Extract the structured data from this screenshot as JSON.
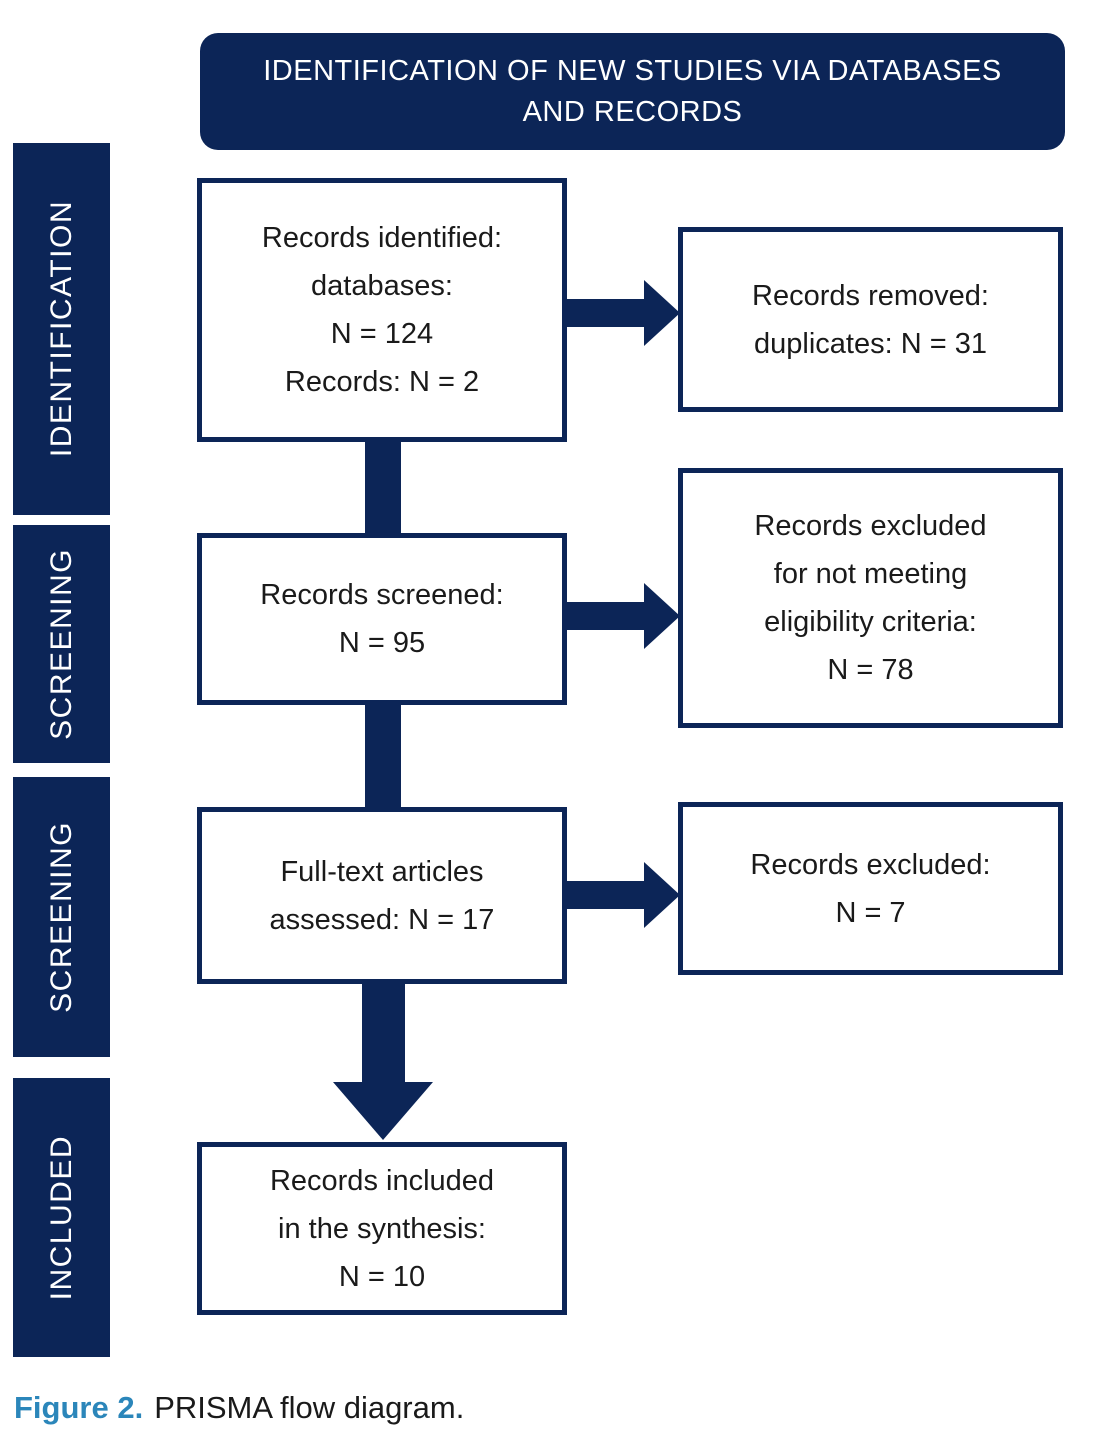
{
  "colors": {
    "navy": "#0c2557",
    "caption_blue": "#2b86ba",
    "box_text": "#1a1a1a"
  },
  "header": {
    "title": "IDENTIFICATION OF NEW STUDIES VIA DATABASES AND RECORDS"
  },
  "sidebar": {
    "stages": [
      {
        "label": "IDENTIFICATION"
      },
      {
        "label": "SCREENING"
      },
      {
        "label": "SCREENING"
      },
      {
        "label": "INCLUDED"
      }
    ]
  },
  "flow": {
    "identified": {
      "lines": [
        "Records identified:",
        "databases:",
        "N = 124",
        "Records: N = 2"
      ]
    },
    "removed": {
      "lines": [
        "Records removed:",
        "duplicates: N = 31"
      ]
    },
    "screened": {
      "lines": [
        "Records screened:",
        "N = 95"
      ]
    },
    "excluded_eligibility": {
      "lines": [
        "Records excluded",
        "for not meeting",
        "eligibility criteria:",
        "N = 78"
      ]
    },
    "fulltext": {
      "lines": [
        "Full-text articles",
        "assessed: N = 17"
      ]
    },
    "excluded": {
      "lines": [
        "Records excluded:",
        "N = 7"
      ]
    },
    "included": {
      "lines": [
        "Records included",
        "in the synthesis:",
        "N = 10"
      ]
    }
  },
  "caption": {
    "label": "Figure 2.",
    "text": "PRISMA flow diagram."
  }
}
